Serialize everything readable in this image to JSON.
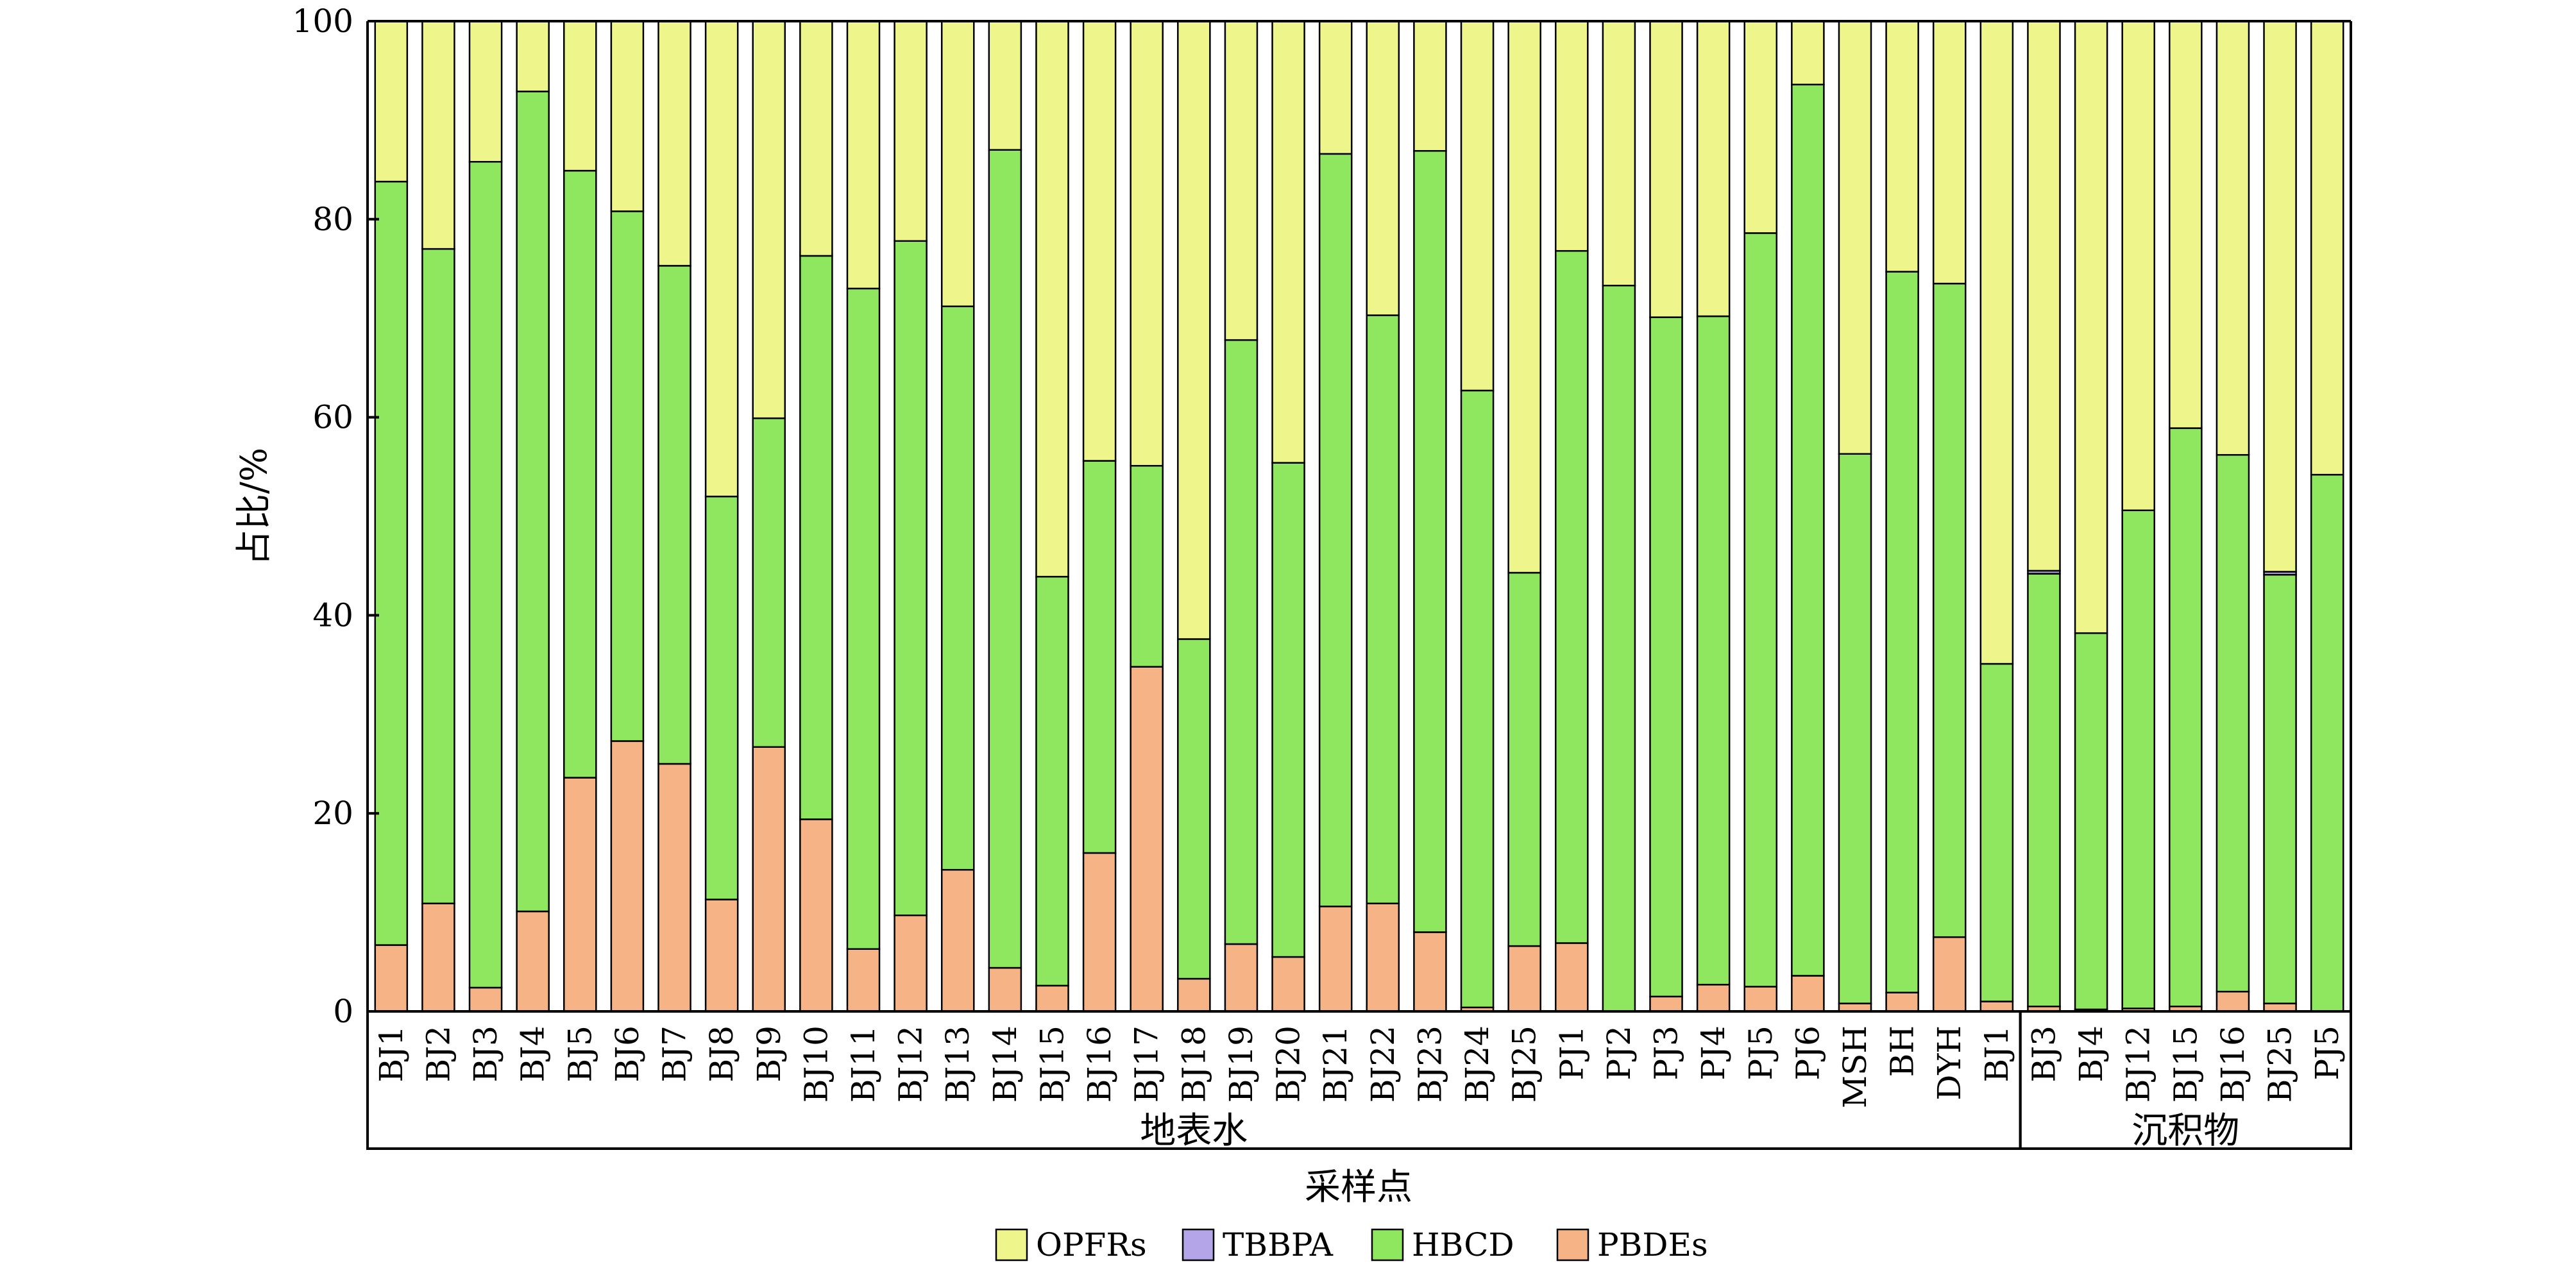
{
  "chart_data": {
    "type": "bar",
    "stacked": true,
    "ylabel": "占比/%",
    "xlabel": "采样点",
    "ylim": [
      0,
      100
    ],
    "yticks": [
      0,
      20,
      40,
      60,
      80,
      100
    ],
    "groups": [
      {
        "name": "地表水",
        "start": 0,
        "end": 34
      },
      {
        "name": "沉积物",
        "start": 35,
        "end": 42
      }
    ],
    "categories": [
      "BJ1",
      "BJ2",
      "BJ3",
      "BJ4",
      "BJ5",
      "BJ6",
      "BJ7",
      "BJ8",
      "BJ9",
      "BJ10",
      "BJ11",
      "BJ12",
      "BJ13",
      "BJ14",
      "BJ15",
      "BJ16",
      "BJ17",
      "BJ18",
      "BJ19",
      "BJ20",
      "BJ21",
      "BJ22",
      "BJ23",
      "BJ24",
      "BJ25",
      "PJ1",
      "PJ2",
      "PJ3",
      "PJ4",
      "PJ5",
      "PJ6",
      "MSH",
      "BH",
      "DYH",
      "BJ1",
      "BJ3",
      "BJ4",
      "BJ12",
      "BJ15",
      "BJ16",
      "BJ25",
      "PJ5"
    ],
    "legend": [
      "OPFRs",
      "TBBPA",
      "HBCD",
      "PBDEs"
    ],
    "legend_position": "bottom",
    "colors": {
      "OPFRs": "#eef58a",
      "TBBPA": "#b3a5e8",
      "HBCD": "#8fe65f",
      "PBDEs": "#f6b486"
    },
    "series": [
      {
        "name": "PBDEs",
        "values": [
          6.7,
          10.9,
          2.4,
          10.1,
          23.6,
          27.3,
          25.0,
          11.3,
          26.7,
          19.4,
          6.3,
          9.7,
          14.3,
          4.4,
          2.6,
          16.0,
          34.8,
          3.3,
          6.8,
          5.5,
          10.6,
          10.9,
          8.0,
          0.4,
          6.6,
          6.9,
          0,
          1.5,
          2.7,
          2.5,
          3.6,
          0.8,
          1.9,
          7.5,
          1.0,
          0.5,
          0.2,
          0.3,
          0.5,
          2.0,
          0.8,
          0
        ]
      },
      {
        "name": "HBCD",
        "values": [
          77.1,
          66.1,
          83.4,
          82.8,
          61.3,
          53.5,
          50.3,
          40.7,
          33.2,
          56.9,
          66.7,
          68.1,
          56.9,
          82.6,
          41.3,
          39.6,
          20.3,
          34.3,
          61.0,
          49.9,
          76.0,
          59.4,
          78.9,
          62.3,
          37.7,
          69.9,
          73.3,
          68.6,
          67.5,
          76.1,
          90.0,
          55.5,
          72.8,
          66.0,
          34.1,
          43.7,
          38.0,
          50.3,
          58.4,
          54.2,
          43.3,
          54.2
        ]
      },
      {
        "name": "TBBPA",
        "values": [
          0,
          0,
          0,
          0,
          0,
          0,
          0,
          0,
          0,
          0,
          0,
          0,
          0,
          0,
          0,
          0,
          0,
          0,
          0,
          0,
          0,
          0,
          0,
          0,
          0,
          0,
          0,
          0,
          0,
          0,
          0,
          0,
          0,
          0,
          0,
          0.3,
          0,
          0,
          0,
          0,
          0.3,
          0
        ]
      },
      {
        "name": "OPFRs",
        "values": [
          16.2,
          23.0,
          14.2,
          7.1,
          15.1,
          19.2,
          24.7,
          48.0,
          40.1,
          23.7,
          27.0,
          22.2,
          28.8,
          13.0,
          56.1,
          44.4,
          44.9,
          62.4,
          32.2,
          44.6,
          13.4,
          29.7,
          13.1,
          37.3,
          55.7,
          23.2,
          26.7,
          29.9,
          29.8,
          21.4,
          6.4,
          43.7,
          25.3,
          26.5,
          64.9,
          55.5,
          61.8,
          49.4,
          41.1,
          43.8,
          55.6,
          45.8
        ]
      }
    ]
  }
}
